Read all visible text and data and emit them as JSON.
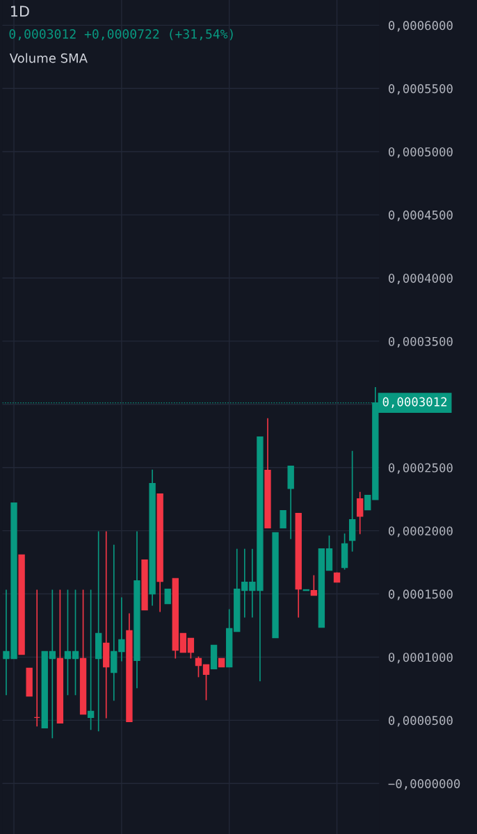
{
  "chart_data": {
    "type": "candlestick",
    "title": "1D",
    "subtitle": "0,0003012 +0,0000722 (+31,54%)",
    "annotations": [
      "Volume SMA"
    ],
    "categories": [
      null,
      null,
      null,
      null,
      null,
      null,
      null,
      null,
      null,
      null,
      null,
      null,
      null,
      null,
      null,
      null,
      null,
      null,
      null,
      null,
      null,
      null,
      null,
      null,
      null,
      null,
      null,
      null,
      null,
      null,
      null,
      null,
      null,
      null,
      null,
      null,
      null,
      null,
      null,
      null,
      null,
      null,
      null,
      null,
      null,
      null,
      null,
      null,
      null
    ],
    "ohlc": [
      [
        9.89e-05,
        0.0001533,
        6.98e-05,
        0.0001044
      ],
      [
        9.89e-05,
        0.000222,
        9.89e-05,
        0.000222
      ],
      [
        0.0001808,
        0.0001808,
        0.0001022,
        0.0001022
      ],
      [
        9.12e-05,
        9.12e-05,
        6.92e-05,
        6.92e-05
      ],
      [
        5.22e-05,
        0.0001533,
        4.51e-05,
        5.22e-05
      ],
      [
        4.4e-05,
        0.0001044,
        4.4e-05,
        0.0001044
      ],
      [
        9.89e-05,
        0.0001533,
        3.57e-05,
        0.0001044
      ],
      [
        9.89e-05,
        0.0001533,
        4.78e-05,
        4.78e-05
      ],
      [
        9.89e-05,
        0.0001533,
        6.98e-05,
        0.0001044
      ],
      [
        9.89e-05,
        0.0001533,
        6.98e-05,
        0.0001044
      ],
      [
        9.89e-05,
        0.0001533,
        5.49e-05,
        5.49e-05
      ],
      [
        5.22e-05,
        0.0001533,
        4.23e-05,
        5.71e-05
      ],
      [
        9.89e-05,
        0.0001995,
        4.12e-05,
        0.0001187
      ],
      [
        0.000111,
        0.0001995,
        5.16e-05,
        9.23e-05
      ],
      [
        8.79e-05,
        0.000189,
        6.54e-05,
        0.0001044
      ],
      [
        0.0001044,
        0.0001473,
        9.67e-05,
        0.0001137
      ],
      [
        0.0001209,
        0.0001346,
        4.89e-05,
        4.89e-05
      ],
      [
        9.73e-05,
        0.0001995,
        7.53e-05,
        0.0001604
      ],
      [
        0.0001769,
        0.0001769,
        0.0001374,
        0.0001374
      ],
      [
        0.00015,
        0.0002484,
        0.0001407,
        0.0002374
      ],
      [
        0.0002291,
        0.0002291,
        0.0001357,
        0.0001599
      ],
      [
        0.0001423,
        0.0001538,
        0.0001423,
        0.0001538
      ],
      [
        0.0001621,
        0.0001621,
        9.89e-05,
        0.0001055
      ],
      [
        0.0001187,
        0.0001187,
        0.0001038,
        0.0001038
      ],
      [
        0.0001148,
        0.0001148,
        9.89e-05,
        0.0001038
      ],
      [
        9.89e-05,
        0.0001005,
        8.41e-05,
        9.34e-05
      ],
      [
        9.4e-05,
        9.4e-05,
        6.59e-05,
        8.63e-05
      ],
      [
        9.07e-05,
        0.0001093,
        9.07e-05,
        0.0001093
      ],
      [
        9.89e-05,
        9.89e-05,
        9.23e-05,
        9.23e-05
      ],
      [
        9.23e-05,
        0.0001379,
        9.23e-05,
        0.0001225
      ],
      [
        0.0001203,
        0.0001857,
        0.0001203,
        0.0001538
      ],
      [
        0.0001527,
        0.0001857,
        0.0001313,
        0.0001593
      ],
      [
        0.0001527,
        0.0001857,
        0.0001313,
        0.0001593
      ],
      [
        0.0001527,
        0.0002742,
        8.08e-05,
        0.0002742
      ],
      [
        0.0002478,
        0.000289,
        0.0002022,
        0.0002022
      ],
      [
        0.0001154,
        0.0001984,
        0.0001154,
        0.0001984
      ],
      [
        0.0002022,
        0.0002159,
        0.0002022,
        0.0002159
      ],
      [
        0.0002335,
        0.0002511,
        0.0001934,
        0.0002511
      ],
      [
        0.0002137,
        0.0002137,
        0.0001313,
        0.0001538
      ],
      [
        0.0001527,
        0.0001533,
        0.0001527,
        0.0001533
      ],
      [
        0.0001527,
        0.0001648,
        0.0001489,
        0.0001489
      ],
      [
        0.0001236,
        0.0001857,
        0.0001236,
        0.0001857
      ],
      [
        0.0001687,
        0.0001962,
        0.0001687,
        0.0001857
      ],
      [
        0.0001665,
        0.000167,
        0.0001593,
        0.0001593
      ],
      [
        0.0001709,
        0.0001978,
        0.0001692,
        0.0001896
      ],
      [
        0.0001923,
        0.0002632,
        0.0001835,
        0.0002088
      ],
      [
        0.0002253,
        0.0002308,
        0.0001973,
        0.0002115
      ],
      [
        0.0002165,
        0.000228,
        0.0002165,
        0.000228
      ],
      [
        0.0002247,
        0.0003137,
        0.0002247,
        0.0003012
      ]
    ],
    "colors": [
      "#089981",
      "#089981",
      "#f23645",
      "#f23645",
      "#f23645",
      "#089981",
      "#089981",
      "#f23645",
      "#089981",
      "#089981",
      "#f23645",
      "#089981",
      "#089981",
      "#f23645",
      "#089981",
      "#089981",
      "#f23645",
      "#089981",
      "#f23645",
      "#089981",
      "#f23645",
      "#089981",
      "#f23645",
      "#f23645",
      "#f23645",
      "#f23645",
      "#f23645",
      "#089981",
      "#f23645",
      "#089981",
      "#089981",
      "#089981",
      "#089981",
      "#089981",
      "#f23645",
      "#089981",
      "#089981",
      "#089981",
      "#f23645",
      "#089981",
      "#f23645",
      "#089981",
      "#089981",
      "#f23645",
      "#089981",
      "#089981",
      "#f23645",
      "#089981",
      "#089981"
    ],
    "ylim": [
      -4e-05,
      0.00062
    ],
    "yticks": [
      {
        "value": 0.0,
        "label": "−0,0000000"
      },
      {
        "value": 5e-05,
        "label": "0,0000500"
      },
      {
        "value": 0.0001,
        "label": "0,0001000"
      },
      {
        "value": 0.00015,
        "label": "0,0001500"
      },
      {
        "value": 0.0002,
        "label": "0,0002000"
      },
      {
        "value": 0.00025,
        "label": "0,0002500"
      },
      {
        "value": 0.0003,
        "label": null
      },
      {
        "value": 0.00035,
        "label": "0,0003500"
      },
      {
        "value": 0.0004,
        "label": "0,0004000"
      },
      {
        "value": 0.00045,
        "label": "0,0004500"
      },
      {
        "value": 0.0005,
        "label": "0,0005000"
      },
      {
        "value": 0.00055,
        "label": "0,0005500"
      },
      {
        "value": 0.0006,
        "label": "0,0006000"
      }
    ],
    "ref_lines": [
      {
        "axis": "y",
        "value": 0.0003012,
        "label": "0,0003012",
        "color": "#089981",
        "line_style": "dotted"
      }
    ],
    "grid": true,
    "legend": false
  }
}
